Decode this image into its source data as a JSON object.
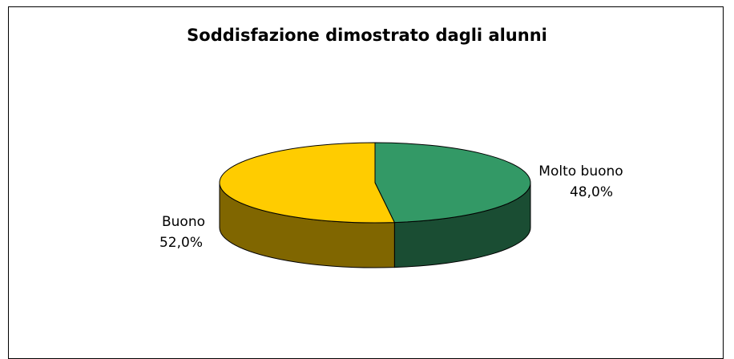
{
  "chart_data": {
    "type": "pie",
    "title": "Soddisfazione dimostrato dagli alunni",
    "categories": [
      "Molto buono",
      "Buono"
    ],
    "values": [
      48.0,
      52.0
    ],
    "value_labels": [
      "48,0%",
      "52,0%"
    ],
    "colors": {
      "Molto buono": {
        "top": "#339966",
        "side": "#1a4d33"
      },
      "Buono": {
        "top": "#ffcc00",
        "side": "#806600"
      }
    },
    "style": "3d-pie",
    "legend": "none"
  }
}
